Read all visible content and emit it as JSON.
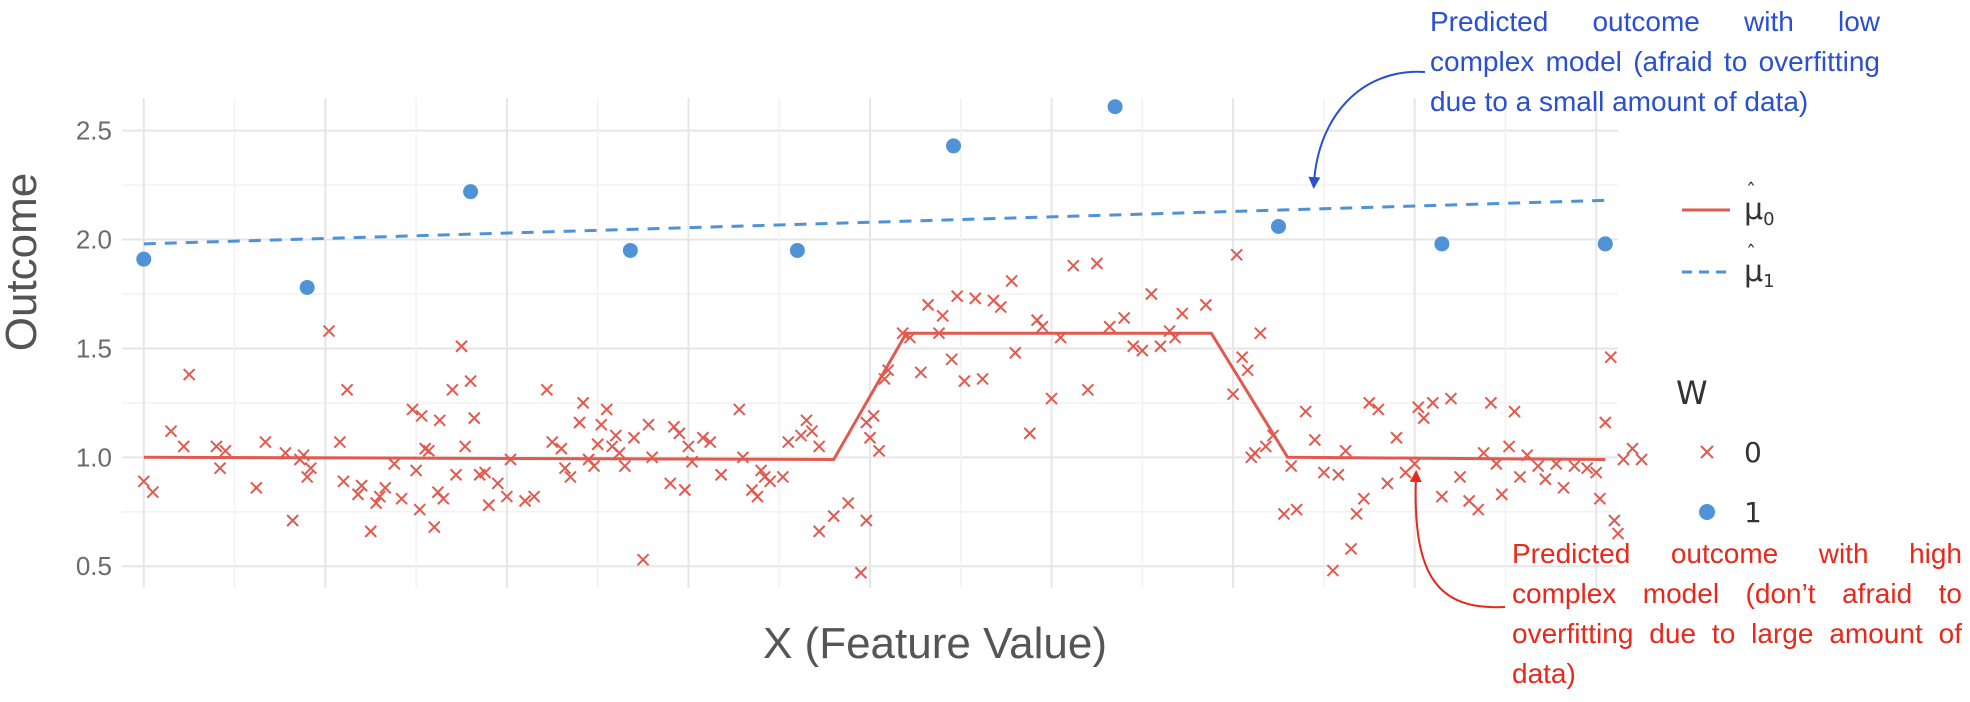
{
  "chart_data": {
    "type": "scatter",
    "xlabel": "X (Feature Value)",
    "ylabel": "Outcome",
    "ylim": [
      0.4,
      2.65
    ],
    "y_ticks": [
      0.5,
      1.0,
      1.5,
      2.0,
      2.5
    ],
    "y_tick_labels": [
      "0.5",
      "1.0",
      "1.5",
      "2.0",
      "2.5"
    ],
    "xlim": [
      -0.12,
      8.12
    ],
    "grid": true,
    "legend": {
      "position": "right",
      "curve_entries": [
        {
          "label_base": "μ",
          "label_sub": "0",
          "color": "#e05a4f",
          "style": "solid"
        },
        {
          "label_base": "μ",
          "label_sub": "1",
          "color": "#4f92d6",
          "style": "dashed"
        }
      ],
      "group_title": "W",
      "group_entries": [
        {
          "label": "0",
          "marker": "cross",
          "color": "#e05a4f"
        },
        {
          "label": "1",
          "marker": "circle",
          "color": "#4f92d6"
        }
      ]
    },
    "series": [
      {
        "name": "1",
        "marker": "circle",
        "color": "#4f92d6",
        "points": [
          [
            0.0,
            1.91
          ],
          [
            0.9,
            1.78
          ],
          [
            1.8,
            2.22
          ],
          [
            2.68,
            1.95
          ],
          [
            3.6,
            1.95
          ],
          [
            4.46,
            2.43
          ],
          [
            5.35,
            2.61
          ],
          [
            6.25,
            2.06
          ],
          [
            7.15,
            1.98
          ],
          [
            8.05,
            1.98
          ]
        ]
      },
      {
        "name": "0",
        "marker": "cross",
        "color": "#e05a4f",
        "points": [
          [
            0.0,
            0.89
          ],
          [
            0.05,
            0.84
          ],
          [
            0.15,
            1.12
          ],
          [
            0.22,
            1.05
          ],
          [
            0.25,
            1.38
          ],
          [
            0.4,
            1.05
          ],
          [
            0.42,
            0.95
          ],
          [
            0.45,
            1.03
          ],
          [
            0.62,
            0.86
          ],
          [
            0.67,
            1.07
          ],
          [
            0.78,
            1.02
          ],
          [
            0.82,
            0.71
          ],
          [
            0.86,
            0.99
          ],
          [
            0.88,
            1.01
          ],
          [
            0.9,
            0.91
          ],
          [
            0.92,
            0.95
          ],
          [
            1.02,
            1.58
          ],
          [
            1.08,
            1.07
          ],
          [
            1.1,
            0.89
          ],
          [
            1.12,
            1.31
          ],
          [
            1.18,
            0.83
          ],
          [
            1.2,
            0.87
          ],
          [
            1.25,
            0.66
          ],
          [
            1.28,
            0.79
          ],
          [
            1.3,
            0.82
          ],
          [
            1.33,
            0.86
          ],
          [
            1.38,
            0.97
          ],
          [
            1.42,
            0.81
          ],
          [
            1.48,
            1.22
          ],
          [
            1.5,
            0.94
          ],
          [
            1.52,
            0.76
          ],
          [
            1.53,
            1.19
          ],
          [
            1.55,
            1.04
          ],
          [
            1.57,
            1.03
          ],
          [
            1.6,
            0.68
          ],
          [
            1.62,
            0.84
          ],
          [
            1.63,
            1.17
          ],
          [
            1.65,
            0.81
          ],
          [
            1.7,
            1.31
          ],
          [
            1.72,
            0.92
          ],
          [
            1.75,
            1.51
          ],
          [
            1.77,
            1.05
          ],
          [
            1.8,
            1.35
          ],
          [
            1.82,
            1.18
          ],
          [
            1.85,
            0.92
          ],
          [
            1.88,
            0.93
          ],
          [
            1.9,
            0.78
          ],
          [
            1.95,
            0.88
          ],
          [
            2.0,
            0.82
          ],
          [
            2.02,
            0.99
          ],
          [
            2.1,
            0.8
          ],
          [
            2.15,
            0.82
          ],
          [
            2.22,
            1.31
          ],
          [
            2.25,
            1.07
          ],
          [
            2.3,
            1.04
          ],
          [
            2.32,
            0.95
          ],
          [
            2.35,
            0.91
          ],
          [
            2.4,
            1.16
          ],
          [
            2.42,
            1.25
          ],
          [
            2.45,
            0.99
          ],
          [
            2.48,
            0.96
          ],
          [
            2.5,
            1.06
          ],
          [
            2.52,
            1.15
          ],
          [
            2.55,
            1.22
          ],
          [
            2.58,
            1.05
          ],
          [
            2.6,
            1.1
          ],
          [
            2.62,
            1.02
          ],
          [
            2.65,
            0.96
          ],
          [
            2.7,
            1.09
          ],
          [
            2.75,
            0.53
          ],
          [
            2.78,
            1.15
          ],
          [
            2.8,
            1.0
          ],
          [
            2.9,
            0.88
          ],
          [
            2.92,
            1.14
          ],
          [
            2.95,
            1.11
          ],
          [
            2.98,
            0.85
          ],
          [
            3.0,
            1.05
          ],
          [
            3.02,
            0.98
          ],
          [
            3.08,
            1.09
          ],
          [
            3.12,
            1.07
          ],
          [
            3.18,
            0.92
          ],
          [
            3.28,
            1.22
          ],
          [
            3.3,
            1.0
          ],
          [
            3.35,
            0.85
          ],
          [
            3.38,
            0.82
          ],
          [
            3.4,
            0.94
          ],
          [
            3.42,
            0.91
          ],
          [
            3.45,
            0.89
          ],
          [
            3.52,
            0.91
          ],
          [
            3.55,
            1.07
          ],
          [
            3.62,
            1.1
          ],
          [
            3.65,
            1.17
          ],
          [
            3.68,
            1.12
          ],
          [
            3.72,
            1.05
          ],
          [
            3.72,
            0.66
          ],
          [
            3.8,
            0.73
          ],
          [
            3.88,
            0.79
          ],
          [
            3.95,
            0.47
          ],
          [
            3.98,
            0.71
          ],
          [
            3.98,
            1.16
          ],
          [
            4.0,
            1.09
          ],
          [
            4.02,
            1.19
          ],
          [
            4.05,
            1.03
          ],
          [
            4.08,
            1.36
          ],
          [
            4.1,
            1.4
          ],
          [
            4.18,
            1.57
          ],
          [
            4.22,
            1.55
          ],
          [
            4.28,
            1.39
          ],
          [
            4.32,
            1.7
          ],
          [
            4.38,
            1.57
          ],
          [
            4.4,
            1.65
          ],
          [
            4.45,
            1.45
          ],
          [
            4.48,
            1.74
          ],
          [
            4.52,
            1.35
          ],
          [
            4.58,
            1.73
          ],
          [
            4.62,
            1.36
          ],
          [
            4.68,
            1.72
          ],
          [
            4.72,
            1.69
          ],
          [
            4.78,
            1.81
          ],
          [
            4.8,
            1.48
          ],
          [
            4.88,
            1.11
          ],
          [
            4.92,
            1.63
          ],
          [
            4.95,
            1.6
          ],
          [
            5.0,
            1.27
          ],
          [
            5.05,
            1.55
          ],
          [
            5.12,
            1.88
          ],
          [
            5.2,
            1.31
          ],
          [
            5.25,
            1.89
          ],
          [
            5.32,
            1.6
          ],
          [
            5.4,
            1.64
          ],
          [
            5.45,
            1.51
          ],
          [
            5.5,
            1.49
          ],
          [
            5.55,
            1.75
          ],
          [
            5.6,
            1.51
          ],
          [
            5.65,
            1.58
          ],
          [
            5.68,
            1.55
          ],
          [
            5.72,
            1.66
          ],
          [
            5.85,
            1.7
          ],
          [
            6.0,
            1.29
          ],
          [
            6.02,
            1.93
          ],
          [
            6.05,
            1.46
          ],
          [
            6.08,
            1.4
          ],
          [
            6.1,
            1.0
          ],
          [
            6.12,
            1.02
          ],
          [
            6.15,
            1.57
          ],
          [
            6.18,
            1.05
          ],
          [
            6.22,
            1.1
          ],
          [
            6.28,
            0.74
          ],
          [
            6.32,
            0.96
          ],
          [
            6.35,
            0.76
          ],
          [
            6.4,
            1.21
          ],
          [
            6.45,
            1.08
          ],
          [
            6.5,
            0.93
          ],
          [
            6.55,
            0.48
          ],
          [
            6.58,
            0.92
          ],
          [
            6.62,
            1.03
          ],
          [
            6.65,
            0.58
          ],
          [
            6.68,
            0.74
          ],
          [
            6.72,
            0.81
          ],
          [
            6.75,
            1.25
          ],
          [
            6.8,
            1.22
          ],
          [
            6.85,
            0.88
          ],
          [
            6.9,
            1.09
          ],
          [
            6.95,
            0.93
          ],
          [
            7.0,
            0.97
          ],
          [
            7.02,
            1.23
          ],
          [
            7.05,
            1.18
          ],
          [
            7.1,
            1.25
          ],
          [
            7.15,
            0.82
          ],
          [
            7.2,
            1.27
          ],
          [
            7.25,
            0.91
          ],
          [
            7.3,
            0.8
          ],
          [
            7.35,
            0.76
          ],
          [
            7.38,
            1.02
          ],
          [
            7.42,
            1.25
          ],
          [
            7.45,
            0.97
          ],
          [
            7.48,
            0.83
          ],
          [
            7.52,
            1.05
          ],
          [
            7.55,
            1.21
          ],
          [
            7.58,
            0.91
          ],
          [
            7.62,
            1.01
          ],
          [
            7.68,
            0.96
          ],
          [
            7.72,
            0.9
          ],
          [
            7.78,
            0.97
          ],
          [
            7.82,
            0.86
          ],
          [
            7.88,
            0.96
          ],
          [
            7.95,
            0.95
          ],
          [
            8.0,
            0.93
          ],
          [
            8.02,
            0.81
          ],
          [
            8.05,
            1.16
          ],
          [
            8.08,
            1.46
          ],
          [
            8.1,
            0.71
          ],
          [
            8.12,
            0.65
          ],
          [
            8.15,
            0.99
          ],
          [
            8.2,
            1.04
          ],
          [
            8.25,
            0.99
          ]
        ]
      }
    ],
    "lines": [
      {
        "name": "μ0",
        "color": "#e05a4f",
        "style": "solid",
        "points": [
          [
            0.0,
            1.0
          ],
          [
            3.8,
            0.99
          ],
          [
            4.2,
            1.57
          ],
          [
            5.88,
            1.57
          ],
          [
            6.3,
            1.0
          ],
          [
            8.05,
            0.99
          ]
        ]
      },
      {
        "name": "μ1",
        "color": "#4f92d6",
        "style": "dashed",
        "points": [
          [
            0.0,
            1.98
          ],
          [
            8.05,
            2.18
          ]
        ]
      }
    ],
    "annotations": [
      {
        "id": "blue",
        "text": "Predicted outcome with low complex model (afraid to overfitting due to a small amount of data)",
        "color": "#2a4fd0"
      },
      {
        "id": "red",
        "text": "Predicted outcome with high complex model (don’t afraid to overfitting due to large amount of data)",
        "color": "#e8281a"
      }
    ]
  }
}
